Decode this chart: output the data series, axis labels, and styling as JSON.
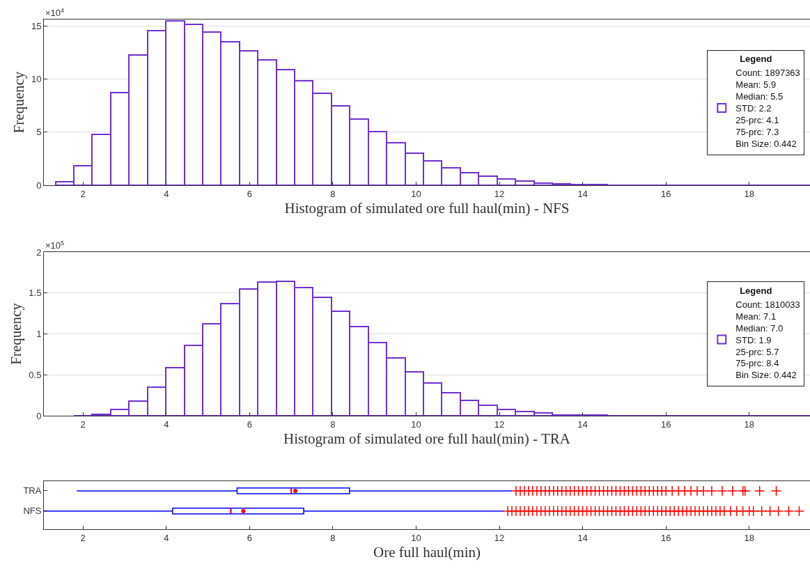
{
  "chart_data": [
    {
      "type": "histogram",
      "xlabel": "Histogram of simulated ore full haul(min) - NFS",
      "ylabel": "Frequency",
      "annotations": [
        "×10$^{4}$"
      ],
      "legend_title": "Legend",
      "legend": "right",
      "grid": "y",
      "bins": [
        1.337,
        1.779,
        2.221,
        2.663,
        3.105,
        3.547,
        3.989,
        4.431,
        4.873,
        5.315,
        5.757,
        6.199,
        6.641,
        7.083,
        7.525,
        7.967,
        8.409,
        8.851,
        9.293,
        9.735,
        10.177,
        10.619,
        11.061,
        11.503,
        11.945,
        12.387,
        12.829,
        13.271,
        13.713,
        14.155,
        14.597,
        15.039,
        15.481,
        15.923,
        16.365,
        16.807,
        17.249,
        17.691,
        18.133,
        18.575,
        19.017,
        19.459
      ],
      "series": [
        {
          "name": "Count: 1897363\nMean: 5.9\nMedian: 5.5\nSTD: 2.2\n25-prc: 4.1\n75-prc: 7.3\nBin Size: 0.442",
          "color": "#7030d0",
          "values": [
            0.36,
            1.81,
            4.8,
            8.69,
            12.26,
            14.55,
            15.46,
            15.16,
            14.43,
            13.53,
            12.64,
            11.77,
            10.86,
            9.84,
            8.67,
            7.45,
            6.22,
            5.07,
            3.99,
            3.02,
            2.28,
            1.66,
            1.18,
            0.82,
            0.6,
            0.37,
            0.22,
            0.14,
            0.09,
            0.05,
            0.03,
            0.02,
            0.02,
            0.01,
            0.01,
            0.01,
            0,
            0,
            0,
            0,
            0
          ]
        }
      ],
      "xlim": [
        1.06,
        19.46
      ],
      "xticks": [
        2,
        4,
        6,
        8,
        10,
        12,
        14,
        16,
        18
      ],
      "ylim": [
        0,
        15.6
      ],
      "yticks": [
        0,
        5,
        10,
        15
      ]
    },
    {
      "type": "histogram",
      "xlabel": "Histogram of simulated ore full haul(min) - TRA",
      "ylabel": "Frequency",
      "annotations": [
        "×10$^{5}$"
      ],
      "legend_title": "Legend",
      "legend": "right",
      "grid": "y",
      "bins": [
        1.779,
        2.221,
        2.663,
        3.105,
        3.547,
        3.989,
        4.431,
        4.873,
        5.315,
        5.757,
        6.199,
        6.641,
        7.083,
        7.525,
        7.967,
        8.409,
        8.851,
        9.293,
        9.735,
        10.177,
        10.619,
        11.061,
        11.503,
        11.945,
        12.387,
        12.829,
        13.271,
        13.713,
        14.155,
        14.597,
        15.039,
        15.481,
        15.923,
        16.365,
        16.807,
        17.249,
        17.691,
        18.133,
        18.575,
        19.017,
        19.459
      ],
      "series": [
        {
          "name": "Count: 1810033\nMean: 7.1\nMedian: 7.0\nSTD: 1.9\n25-prc: 5.7\n75-prc: 8.4\nBin Size: 0.442",
          "color": "#7030d0",
          "values": [
            0,
            0.02,
            0.08,
            0.18,
            0.35,
            0.59,
            0.86,
            1.12,
            1.37,
            1.55,
            1.63,
            1.64,
            1.57,
            1.45,
            1.28,
            1.09,
            0.89,
            0.71,
            0.54,
            0.4,
            0.28,
            0.19,
            0.13,
            0.08,
            0.05,
            0.03,
            0.01,
            0.01,
            0.01,
            0,
            0,
            0,
            0,
            0,
            0,
            0,
            0,
            0,
            0,
            0
          ]
        }
      ],
      "xlim": [
        1.06,
        19.46
      ],
      "xticks": [
        2,
        4,
        6,
        8,
        10,
        12,
        14,
        16,
        18
      ],
      "ylim": [
        0,
        2
      ],
      "yticks": [
        0,
        0.5,
        1,
        1.5,
        2
      ]
    },
    {
      "type": "box",
      "orientation": "horizontal",
      "xlabel": "Ore full haul(min)",
      "categories": [
        "TRA",
        "NFS"
      ],
      "color": "#0000ff",
      "boxes": [
        {
          "low": 1.85,
          "q1": 5.7,
          "median": 7.0,
          "q3": 8.4,
          "high": 12.3,
          "mean": 7.1,
          "outliers": [
            12.4,
            12.5,
            12.6,
            12.7,
            12.8,
            12.9,
            13.0,
            13.1,
            13.2,
            13.3,
            13.4,
            13.5,
            13.6,
            13.7,
            13.8,
            13.9,
            14.0,
            14.1,
            14.2,
            14.3,
            14.4,
            14.5,
            14.6,
            14.7,
            14.8,
            14.9,
            15.0,
            15.1,
            15.2,
            15.3,
            15.4,
            15.5,
            15.6,
            15.7,
            15.8,
            15.9,
            16.0,
            16.15,
            16.3,
            16.45,
            16.6,
            16.75,
            16.9,
            17.1,
            17.35,
            17.6,
            17.85,
            17.9,
            18.25,
            18.65
          ]
        },
        {
          "low": 1.06,
          "q1": 4.15,
          "median": 5.55,
          "q3": 7.3,
          "high": 12.1,
          "mean": 5.85,
          "outliers": [
            12.2,
            12.3,
            12.4,
            12.5,
            12.6,
            12.7,
            12.8,
            12.9,
            13.0,
            13.1,
            13.2,
            13.3,
            13.4,
            13.5,
            13.6,
            13.7,
            13.8,
            13.9,
            14.0,
            14.1,
            14.2,
            14.3,
            14.4,
            14.5,
            14.6,
            14.7,
            14.8,
            14.9,
            15.0,
            15.1,
            15.2,
            15.3,
            15.4,
            15.5,
            15.6,
            15.7,
            15.8,
            15.9,
            16.0,
            16.1,
            16.2,
            16.3,
            16.4,
            16.5,
            16.6,
            16.7,
            16.8,
            16.9,
            17.0,
            17.1,
            17.2,
            17.3,
            17.4,
            17.55,
            17.7,
            17.85,
            18.0,
            18.1,
            18.3,
            18.5,
            18.7,
            18.95,
            19.2
          ]
        }
      ],
      "xlim": [
        1.06,
        19.46
      ],
      "xticks": [
        2,
        4,
        6,
        8,
        10,
        12,
        14,
        16,
        18
      ]
    }
  ]
}
